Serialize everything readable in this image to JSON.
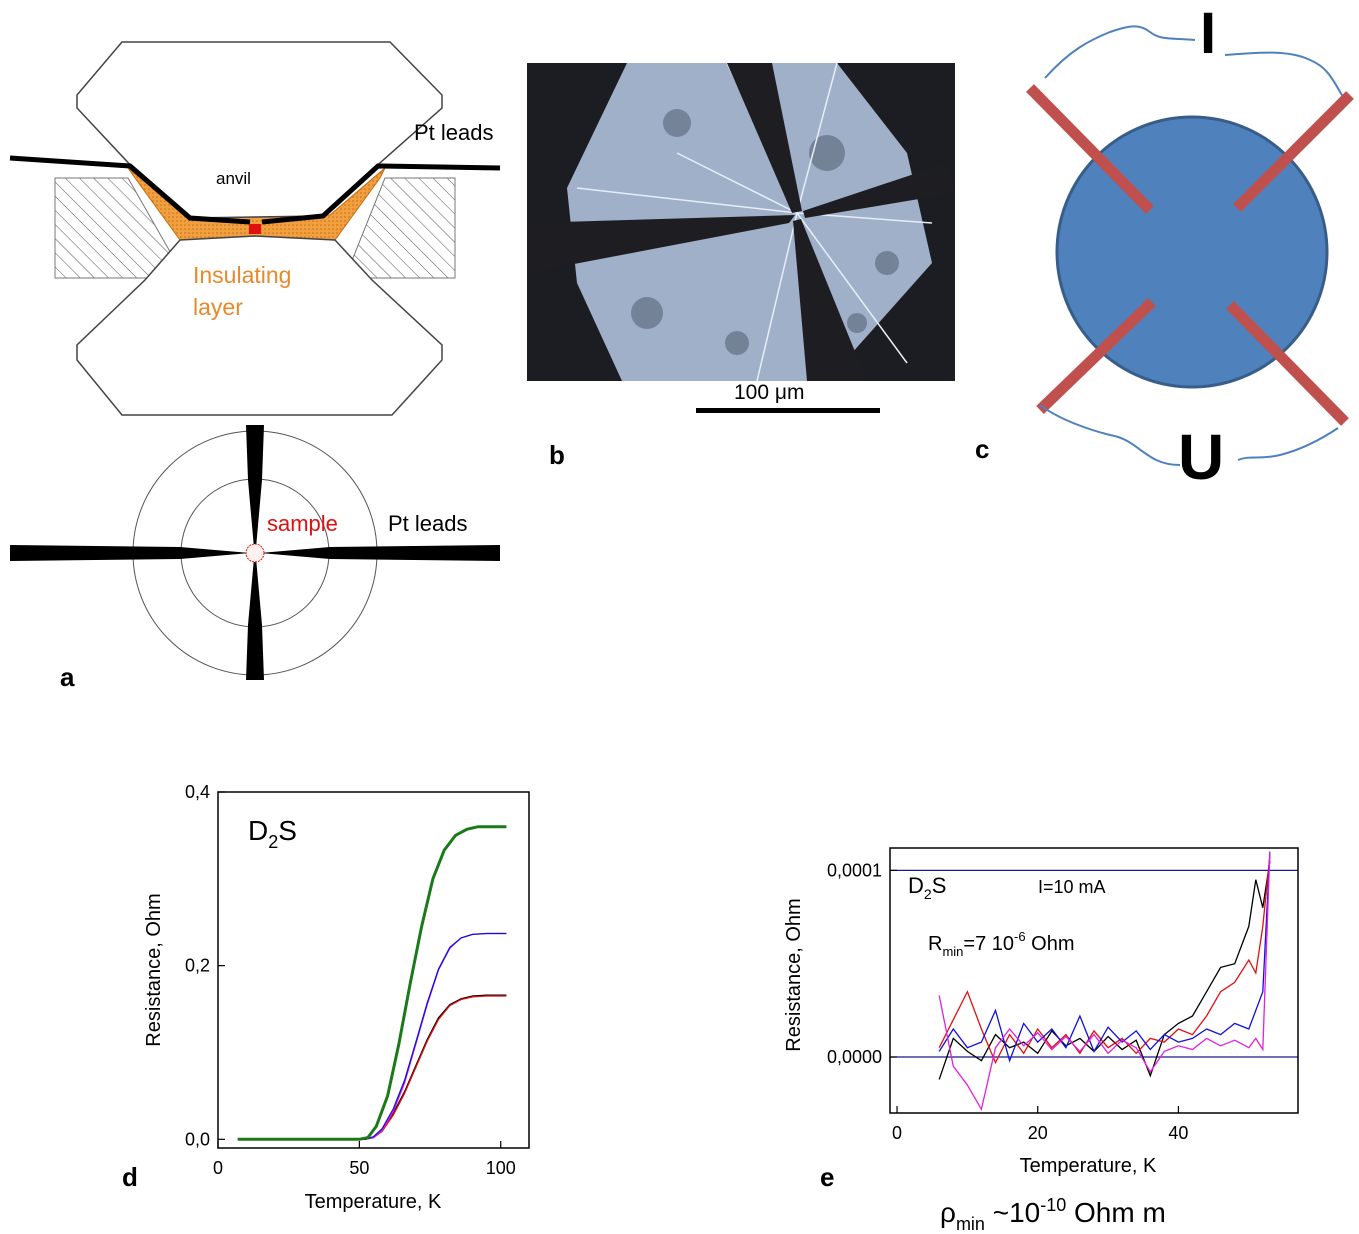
{
  "panels": {
    "a": {
      "letter": "a",
      "anvil_label": "anvil",
      "leads_label_top": "Pt leads",
      "insulating_label_line1": "Insulating",
      "insulating_label_line2": "layer",
      "sample_label": "sample",
      "leads_label_bottom": "Pt leads"
    },
    "b": {
      "letter": "b",
      "scale_label": "100 μm"
    },
    "c": {
      "letter": "c",
      "current_label": "I",
      "voltage_label": "U"
    },
    "d": {
      "letter": "d"
    },
    "e": {
      "letter": "e",
      "caption_rho": "ρ",
      "caption_sub": "min",
      "caption_rest": " ~10",
      "caption_exp": "-10",
      "caption_unit": " Ohm m"
    }
  },
  "colors": {
    "insulating": "#e8892a",
    "sample_red": "#e01010",
    "disk_blue": "#4f81bd",
    "lead_red": "#c0504d",
    "wire_blue": "#4f81bd",
    "curve_green": "#1a7a1a",
    "curve_blue": "#1010e0",
    "curve_magenta": "#e020e0",
    "curve_black": "#000000",
    "curve_red": "#e01010",
    "ref_line": "#1a1a8c"
  },
  "chart_data": [
    {
      "id": "d",
      "type": "line",
      "title": "D2S",
      "title_main": "D",
      "title_sub": "2",
      "title_tail": "S",
      "xlabel": "Temperature, K",
      "ylabel": "Resistance, Ohm",
      "xlim": [
        0,
        110
      ],
      "ylim": [
        -0.01,
        0.4
      ],
      "xticks": [
        0,
        50,
        100
      ],
      "xtick_labels": [
        "0",
        "50",
        "100"
      ],
      "yticks": [
        0.0,
        0.2,
        0.4
      ],
      "ytick_labels": [
        "0,0",
        "0,2",
        "0,4"
      ],
      "grid": false,
      "legend": "none",
      "series": [
        {
          "color": "#000000",
          "points": [
            [
              7,
              0.0
            ],
            [
              20,
              0.0
            ],
            [
              40,
              0.0
            ],
            [
              52,
              0.0
            ],
            [
              55,
              0.002
            ],
            [
              58,
              0.01
            ],
            [
              62,
              0.03
            ],
            [
              66,
              0.055
            ],
            [
              70,
              0.085
            ],
            [
              74,
              0.115
            ],
            [
              78,
              0.14
            ],
            [
              82,
              0.155
            ],
            [
              86,
              0.162
            ],
            [
              90,
              0.165
            ],
            [
              95,
              0.166
            ],
            [
              102,
              0.166
            ]
          ]
        },
        {
          "color": "#e01010",
          "points": [
            [
              7,
              0.0
            ],
            [
              20,
              0.0
            ],
            [
              40,
              0.0
            ],
            [
              52,
              0.0
            ],
            [
              55,
              0.002
            ],
            [
              58,
              0.009
            ],
            [
              62,
              0.028
            ],
            [
              66,
              0.053
            ],
            [
              70,
              0.083
            ],
            [
              74,
              0.113
            ],
            [
              78,
              0.138
            ],
            [
              82,
              0.154
            ],
            [
              86,
              0.161
            ],
            [
              90,
              0.164
            ],
            [
              95,
              0.165
            ],
            [
              102,
              0.165
            ]
          ]
        },
        {
          "color": "#e020e0",
          "points": [
            [
              7,
              0.0
            ],
            [
              20,
              0.0
            ],
            [
              40,
              0.0
            ],
            [
              52,
              0.0
            ],
            [
              55,
              0.002
            ],
            [
              58,
              0.01
            ],
            [
              62,
              0.032
            ],
            [
              66,
              0.065
            ],
            [
              70,
              0.11
            ],
            [
              74,
              0.155
            ],
            [
              78,
              0.195
            ],
            [
              82,
              0.22
            ],
            [
              86,
              0.232
            ],
            [
              90,
              0.236
            ],
            [
              95,
              0.237
            ],
            [
              102,
              0.237
            ]
          ]
        },
        {
          "color": "#1010e0",
          "points": [
            [
              7,
              0.0
            ],
            [
              20,
              0.0
            ],
            [
              40,
              0.0
            ],
            [
              52,
              0.0
            ],
            [
              55,
              0.003
            ],
            [
              58,
              0.012
            ],
            [
              62,
              0.035
            ],
            [
              66,
              0.068
            ],
            [
              70,
              0.112
            ],
            [
              74,
              0.157
            ],
            [
              78,
              0.196
            ],
            [
              82,
              0.221
            ],
            [
              86,
              0.232
            ],
            [
              90,
              0.236
            ],
            [
              95,
              0.237
            ],
            [
              102,
              0.237
            ]
          ]
        },
        {
          "color": "#1a7a1a",
          "points": [
            [
              7,
              0.0
            ],
            [
              20,
              0.0
            ],
            [
              40,
              0.0
            ],
            [
              50,
              0.0
            ],
            [
              53,
              0.002
            ],
            [
              56,
              0.015
            ],
            [
              60,
              0.05
            ],
            [
              64,
              0.11
            ],
            [
              68,
              0.18
            ],
            [
              72,
              0.245
            ],
            [
              76,
              0.3
            ],
            [
              80,
              0.333
            ],
            [
              84,
              0.35
            ],
            [
              88,
              0.357
            ],
            [
              92,
              0.36
            ],
            [
              96,
              0.36
            ],
            [
              102,
              0.36
            ]
          ]
        }
      ]
    },
    {
      "id": "e",
      "type": "line",
      "title": "D2S",
      "title_main": "D",
      "title_sub": "2",
      "title_tail": "S",
      "annotation_current": "I=10 mA",
      "annotation_r_main": "R",
      "annotation_r_sub": "min",
      "annotation_r_mid": "=7 10",
      "annotation_r_exp": "-6",
      "annotation_r_tail": " Ohm",
      "xlabel": "Temperature, K",
      "ylabel": "Resistance, Ohm",
      "xlim": [
        -1,
        57
      ],
      "ylim": [
        -3e-05,
        0.000112
      ],
      "xticks": [
        0,
        20,
        40
      ],
      "xtick_labels": [
        "0",
        "20",
        "40"
      ],
      "yticks": [
        0.0,
        0.0001
      ],
      "ytick_labels": [
        "0,0000",
        "0,0001"
      ],
      "reference_lines_y": [
        0.0,
        0.0001
      ],
      "grid": false,
      "legend": "none",
      "series": [
        {
          "color": "#000000",
          "points": [
            [
              6,
              -1.2e-05
            ],
            [
              8,
              1e-05
            ],
            [
              10,
              3e-06
            ],
            [
              12,
              -2e-06
            ],
            [
              14,
              1.2e-05
            ],
            [
              16,
              5e-06
            ],
            [
              18,
              8e-06
            ],
            [
              20,
              2e-06
            ],
            [
              22,
              1.4e-05
            ],
            [
              24,
              6e-06
            ],
            [
              26,
              1e-05
            ],
            [
              28,
              3e-06
            ],
            [
              30,
              1.1e-05
            ],
            [
              32,
              4e-06
            ],
            [
              34,
              9e-06
            ],
            [
              36,
              -1e-05
            ],
            [
              38,
              1.2e-05
            ],
            [
              40,
              1.8e-05
            ],
            [
              42,
              2.2e-05
            ],
            [
              44,
              3.5e-05
            ],
            [
              46,
              4.8e-05
            ],
            [
              48,
              5e-05
            ],
            [
              50,
              7e-05
            ],
            [
              51,
              9.5e-05
            ],
            [
              52,
              8e-05
            ],
            [
              53,
              0.000105
            ]
          ]
        },
        {
          "color": "#e01010",
          "points": [
            [
              6,
              5e-06
            ],
            [
              8,
              2e-05
            ],
            [
              10,
              3.5e-05
            ],
            [
              12,
              1.5e-05
            ],
            [
              14,
              -3e-06
            ],
            [
              16,
              1.2e-05
            ],
            [
              18,
              2e-06
            ],
            [
              20,
              1.5e-05
            ],
            [
              22,
              5e-06
            ],
            [
              24,
              1.2e-05
            ],
            [
              26,
              2e-06
            ],
            [
              28,
              1.4e-05
            ],
            [
              30,
              5e-06
            ],
            [
              32,
              1e-05
            ],
            [
              34,
              2e-06
            ],
            [
              36,
              1e-05
            ],
            [
              38,
              8e-06
            ],
            [
              40,
              1.5e-05
            ],
            [
              42,
              1.2e-05
            ],
            [
              44,
              2.2e-05
            ],
            [
              46,
              3.5e-05
            ],
            [
              48,
              4e-05
            ],
            [
              50,
              5.2e-05
            ],
            [
              51,
              4.5e-05
            ],
            [
              52,
              7e-05
            ],
            [
              53,
              0.000108
            ]
          ]
        },
        {
          "color": "#1010e0",
          "points": [
            [
              6,
              3e-06
            ],
            [
              8,
              1.5e-05
            ],
            [
              10,
              5e-06
            ],
            [
              12,
              8e-06
            ],
            [
              14,
              2.5e-05
            ],
            [
              16,
              -2e-06
            ],
            [
              18,
              1.8e-05
            ],
            [
              20,
              8e-06
            ],
            [
              22,
              1.5e-05
            ],
            [
              24,
              5e-06
            ],
            [
              26,
              2.2e-05
            ],
            [
              28,
              3e-06
            ],
            [
              30,
              1.6e-05
            ],
            [
              32,
              8e-06
            ],
            [
              34,
              1.4e-05
            ],
            [
              36,
              4e-06
            ],
            [
              38,
              1.2e-05
            ],
            [
              40,
              8e-06
            ],
            [
              42,
              1e-05
            ],
            [
              44,
              1.5e-05
            ],
            [
              46,
              1.2e-05
            ],
            [
              48,
              1.8e-05
            ],
            [
              50,
              1.5e-05
            ],
            [
              51,
              2.5e-05
            ],
            [
              52,
              3.5e-05
            ],
            [
              53,
              0.00011
            ]
          ]
        },
        {
          "color": "#e020e0",
          "points": [
            [
              6,
              3.3e-05
            ],
            [
              8,
              -5e-06
            ],
            [
              10,
              -1.5e-05
            ],
            [
              12,
              -2.8e-05
            ],
            [
              14,
              5e-06
            ],
            [
              16,
              1.5e-05
            ],
            [
              18,
              6e-06
            ],
            [
              20,
              1.3e-05
            ],
            [
              22,
              4e-06
            ],
            [
              24,
              1.1e-05
            ],
            [
              26,
              3e-06
            ],
            [
              28,
              1.2e-05
            ],
            [
              30,
              2e-06
            ],
            [
              32,
              9e-06
            ],
            [
              34,
              5e-06
            ],
            [
              36,
              -8e-06
            ],
            [
              38,
              3e-06
            ],
            [
              40,
              6e-06
            ],
            [
              42,
              4e-06
            ],
            [
              44,
              1e-05
            ],
            [
              46,
              6e-06
            ],
            [
              48,
              9e-06
            ],
            [
              50,
              5e-06
            ],
            [
              51,
              1e-05
            ],
            [
              52,
              4e-06
            ],
            [
              53,
              0.00011
            ]
          ]
        }
      ]
    }
  ]
}
